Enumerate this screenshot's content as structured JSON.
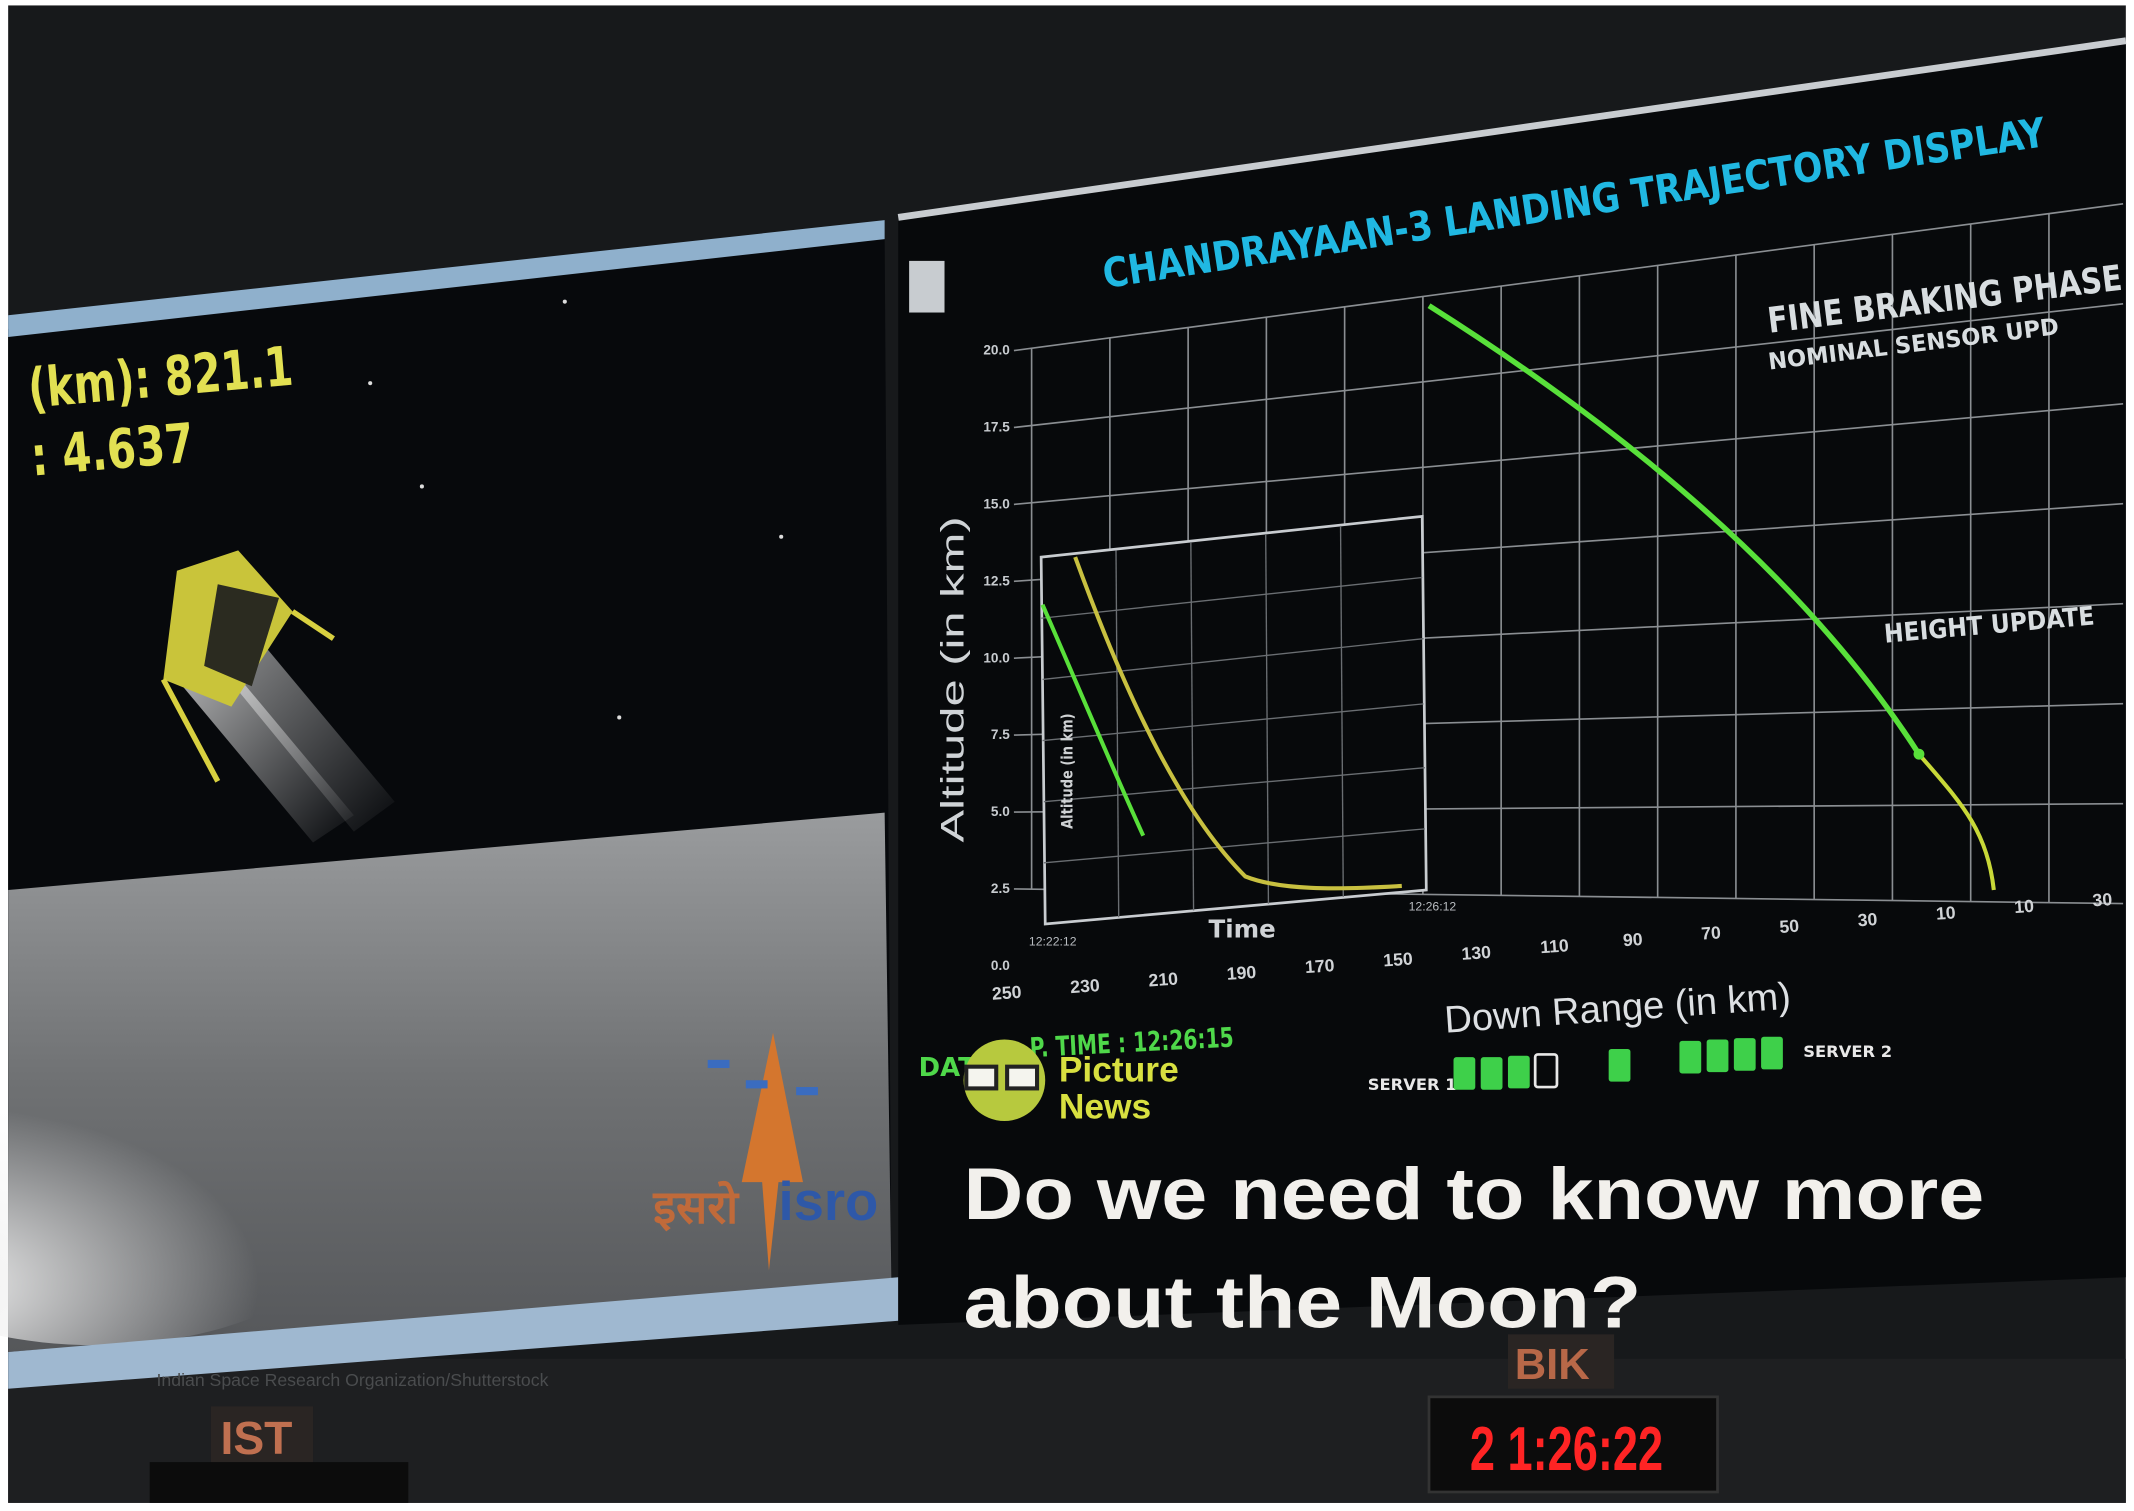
{
  "left_screen": {
    "readout": [
      "(km): 821.1",
      ": 4.637"
    ],
    "logo_hindi": "इसरो",
    "logo_latin": "isro",
    "credit": "Indian Space Research Organization/Shutterstock"
  },
  "trajectory_display": {
    "title": "CHANDRAYAAN-3 LANDING TRAJECTORY DISPLAY",
    "phase": "FINE BRAKING PHASE",
    "status": "NOMINAL SENSOR UPD",
    "annotation": "HEIGHT UPDATE",
    "y_label": "Altitude (in km)",
    "x_label": "Down Range (in km)",
    "yticks": [
      "20.0",
      "17.5",
      "15.0",
      "12.5",
      "10.0",
      "7.5",
      "5.0",
      "2.5",
      "0.0"
    ],
    "xticks": [
      "250",
      "230",
      "210",
      "190",
      "170",
      "150",
      "130",
      "110",
      "90",
      "70",
      "50",
      "30",
      "10",
      "10",
      "30"
    ],
    "inset": {
      "x_label": "Time",
      "y_label": "Altitude (in km)",
      "time_start": "12:22:12",
      "time_end": "12:26:12"
    },
    "data_prefix": "DAT",
    "data_time": "P. TIME : 12:26:15",
    "servers": [
      "SERVER 1",
      "SERVER 2"
    ]
  },
  "watermark": {
    "line_1": "Picture",
    "line_2": "News"
  },
  "caption": {
    "lines": [
      "Do we need to know more",
      "about the Moon?"
    ]
  },
  "clocks": {
    "label_1": "IST",
    "label_2": "BIK",
    "time_2": "2 1:26:22"
  }
}
